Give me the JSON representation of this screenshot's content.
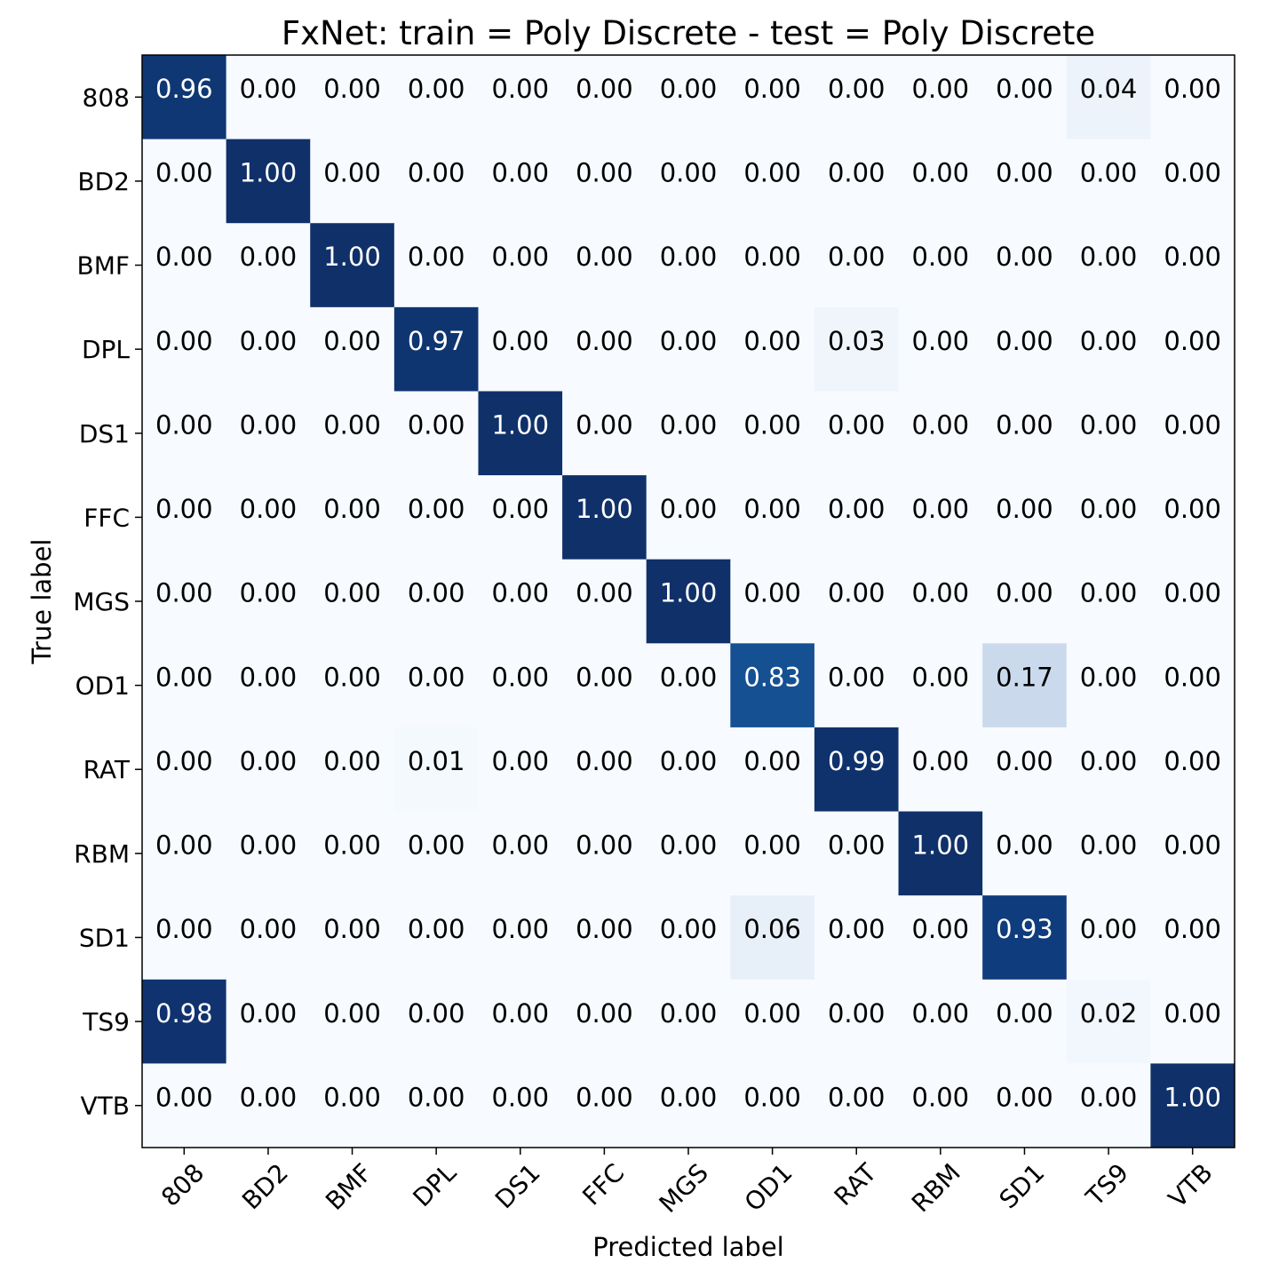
{
  "chart_data": {
    "type": "heatmap",
    "title": "FxNet: train = Poly Discrete - test = Poly Discrete",
    "xlabel": "Predicted label",
    "ylabel": "True label",
    "x_categories": [
      "808",
      "BD2",
      "BMF",
      "DPL",
      "DS1",
      "FFC",
      "MGS",
      "OD1",
      "RAT",
      "RBM",
      "SD1",
      "TS9",
      "VTB"
    ],
    "y_categories": [
      "808",
      "BD2",
      "BMF",
      "DPL",
      "DS1",
      "FFC",
      "MGS",
      "OD1",
      "RAT",
      "RBM",
      "SD1",
      "TS9",
      "VTB"
    ],
    "values": [
      [
        0.96,
        0.0,
        0.0,
        0.0,
        0.0,
        0.0,
        0.0,
        0.0,
        0.0,
        0.0,
        0.0,
        0.04,
        0.0
      ],
      [
        0.0,
        1.0,
        0.0,
        0.0,
        0.0,
        0.0,
        0.0,
        0.0,
        0.0,
        0.0,
        0.0,
        0.0,
        0.0
      ],
      [
        0.0,
        0.0,
        1.0,
        0.0,
        0.0,
        0.0,
        0.0,
        0.0,
        0.0,
        0.0,
        0.0,
        0.0,
        0.0
      ],
      [
        0.0,
        0.0,
        0.0,
        0.97,
        0.0,
        0.0,
        0.0,
        0.0,
        0.03,
        0.0,
        0.0,
        0.0,
        0.0
      ],
      [
        0.0,
        0.0,
        0.0,
        0.0,
        1.0,
        0.0,
        0.0,
        0.0,
        0.0,
        0.0,
        0.0,
        0.0,
        0.0
      ],
      [
        0.0,
        0.0,
        0.0,
        0.0,
        0.0,
        1.0,
        0.0,
        0.0,
        0.0,
        0.0,
        0.0,
        0.0,
        0.0
      ],
      [
        0.0,
        0.0,
        0.0,
        0.0,
        0.0,
        0.0,
        1.0,
        0.0,
        0.0,
        0.0,
        0.0,
        0.0,
        0.0
      ],
      [
        0.0,
        0.0,
        0.0,
        0.0,
        0.0,
        0.0,
        0.0,
        0.83,
        0.0,
        0.0,
        0.17,
        0.0,
        0.0
      ],
      [
        0.0,
        0.0,
        0.0,
        0.01,
        0.0,
        0.0,
        0.0,
        0.0,
        0.99,
        0.0,
        0.0,
        0.0,
        0.0
      ],
      [
        0.0,
        0.0,
        0.0,
        0.0,
        0.0,
        0.0,
        0.0,
        0.0,
        0.0,
        1.0,
        0.0,
        0.0,
        0.0
      ],
      [
        0.0,
        0.0,
        0.0,
        0.0,
        0.0,
        0.0,
        0.0,
        0.06,
        0.0,
        0.0,
        0.93,
        0.0,
        0.0
      ],
      [
        0.98,
        0.0,
        0.0,
        0.0,
        0.0,
        0.0,
        0.0,
        0.0,
        0.0,
        0.0,
        0.0,
        0.02,
        0.0
      ],
      [
        0.0,
        0.0,
        0.0,
        0.0,
        0.0,
        0.0,
        0.0,
        0.0,
        0.0,
        0.0,
        0.0,
        0.0,
        1.0
      ]
    ],
    "value_range": [
      0,
      1
    ],
    "colormap": "Blues",
    "grid": false,
    "legend": "none",
    "colors": {
      "low": "#f7fbff",
      "high": "#1e2f66",
      "text_dark": "#000000",
      "text_light": "#ffffff",
      "frame": "#000000"
    }
  }
}
